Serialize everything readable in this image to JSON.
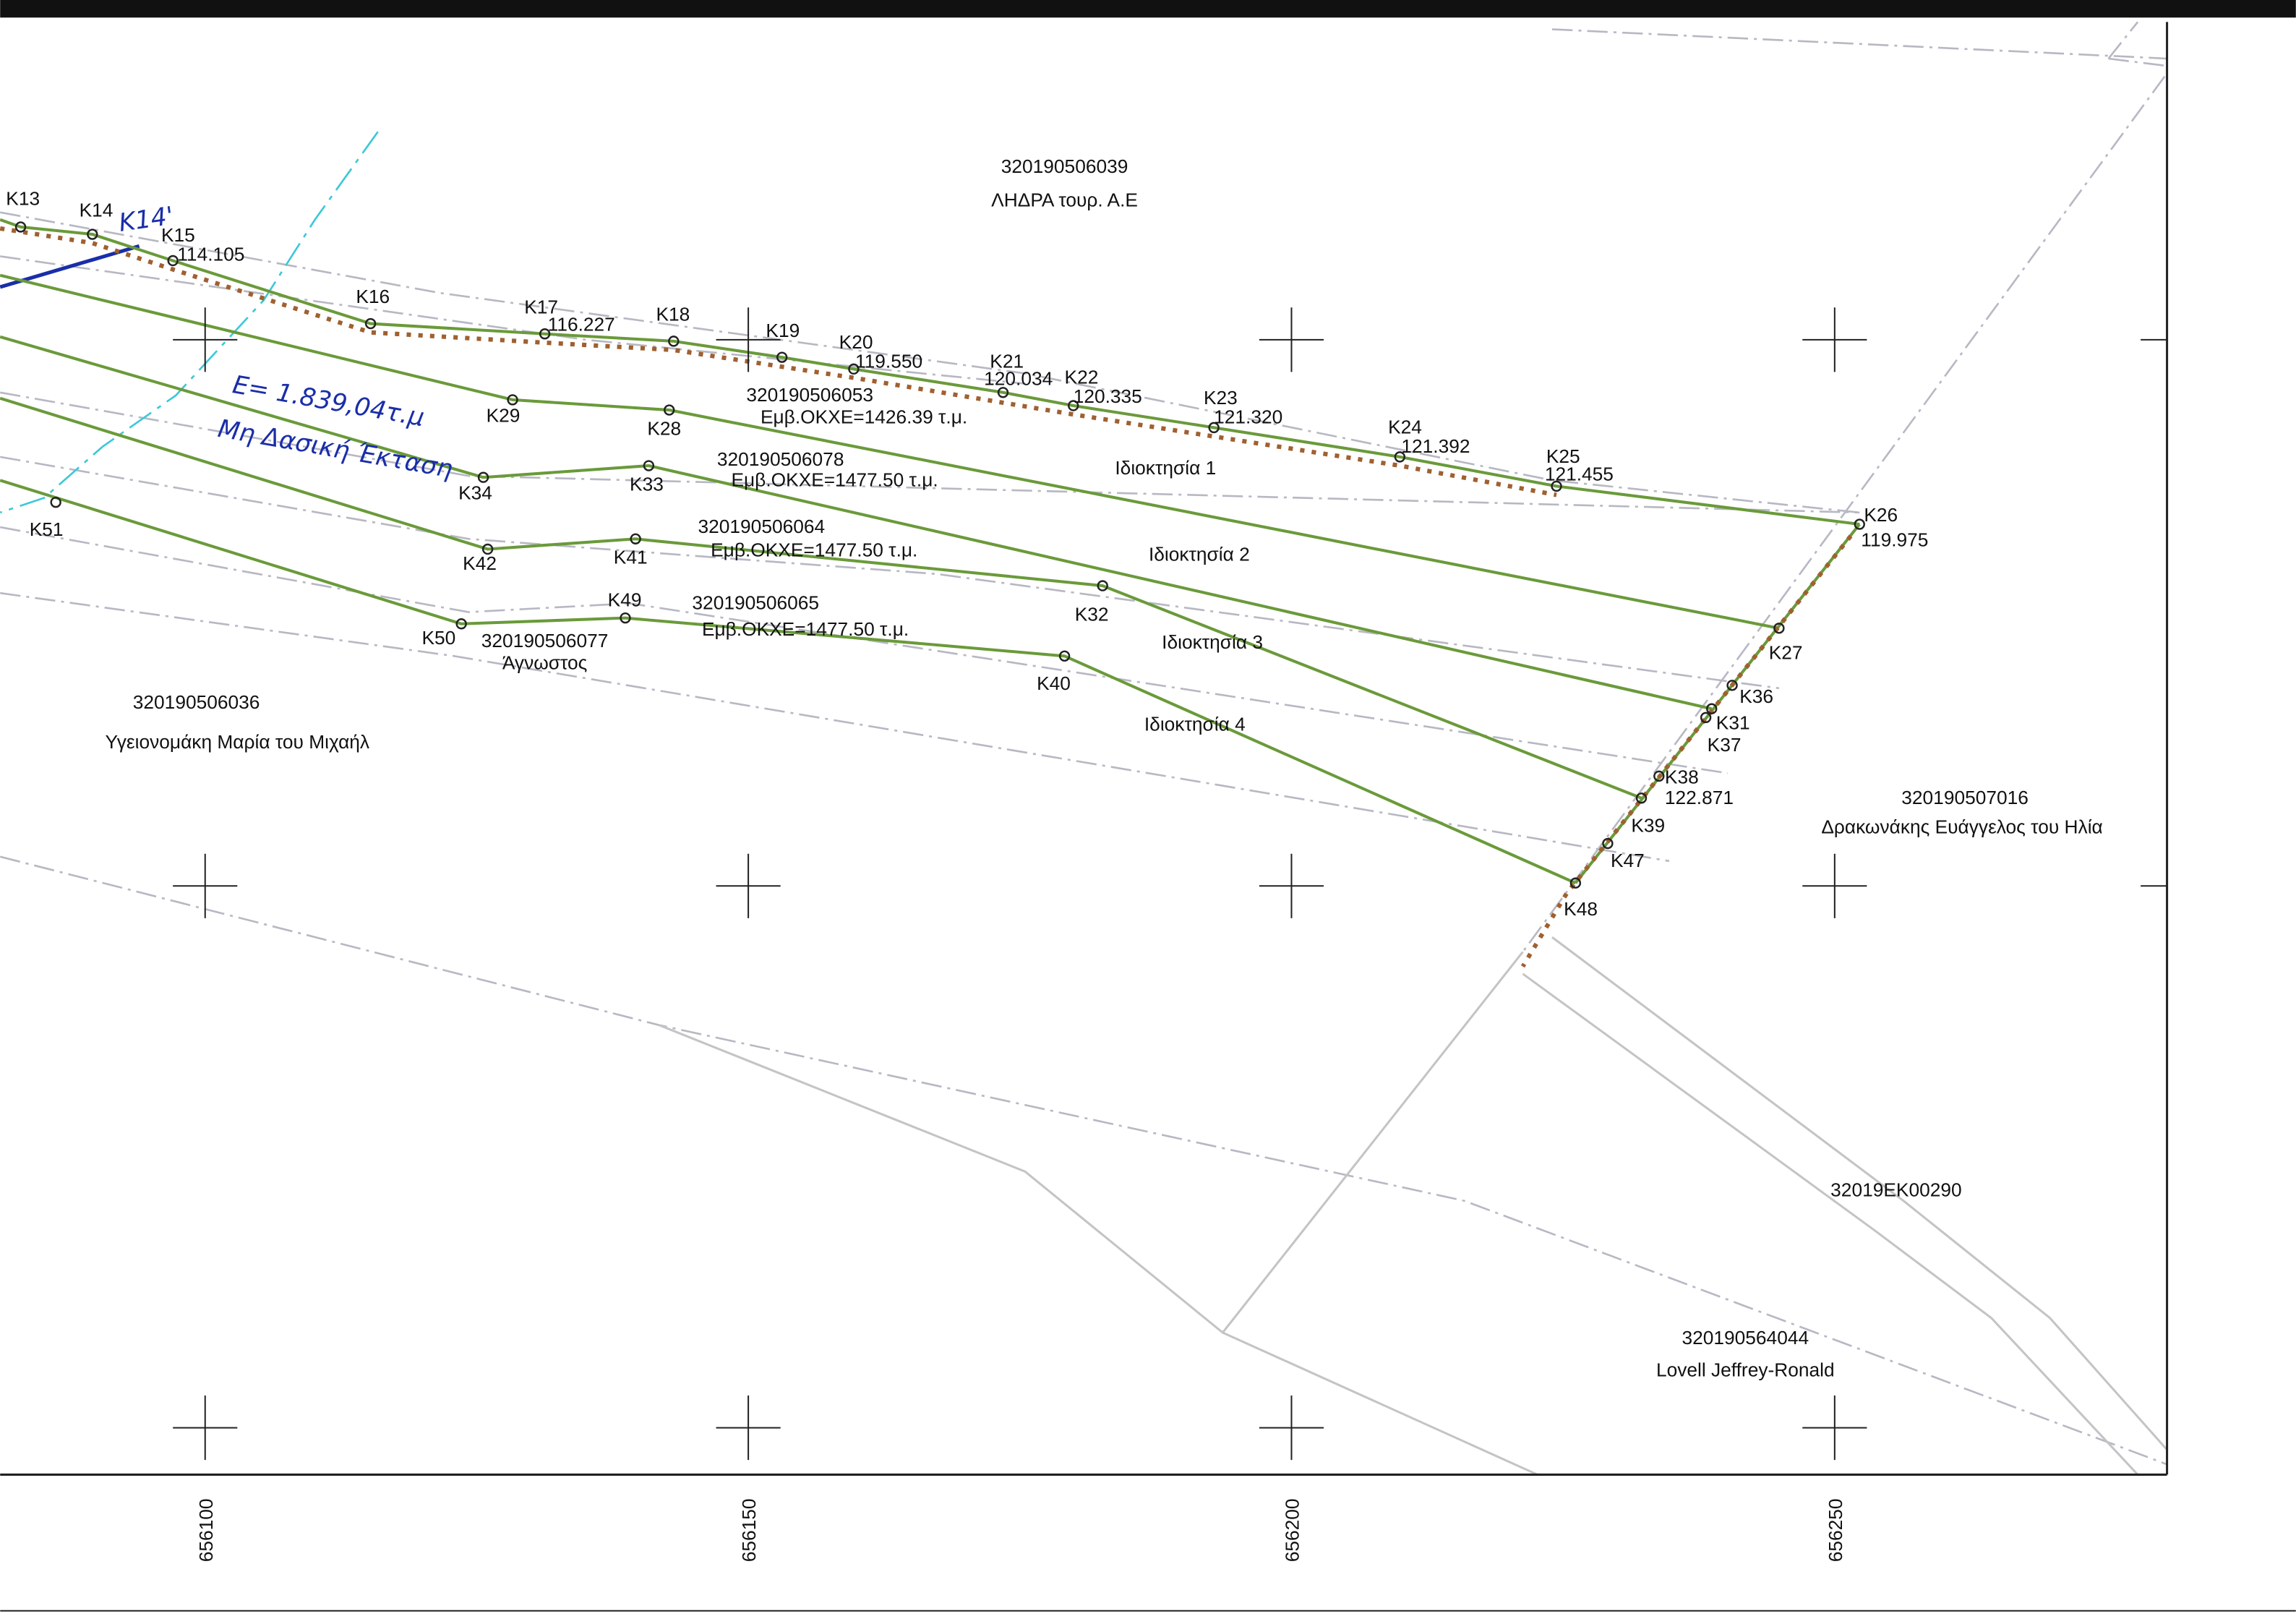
{
  "points": [
    {
      "label": "K13"
    },
    {
      "label": "K14"
    },
    {
      "label": "K15",
      "elevation": "114.105"
    },
    {
      "label": "K16"
    },
    {
      "label": "K17",
      "elevation": "116.227"
    },
    {
      "label": "K18"
    },
    {
      "label": "K19"
    },
    {
      "label": "K20",
      "elevation": "119.550"
    },
    {
      "label": "K21",
      "elevation": "120.034"
    },
    {
      "label": "K22",
      "elevation": "120.335"
    },
    {
      "label": "K23",
      "elevation": "121.320"
    },
    {
      "label": "K24",
      "elevation": "121.392"
    },
    {
      "label": "K25",
      "elevation": "121.455"
    },
    {
      "label": "K26",
      "elevation": "119.975"
    },
    {
      "label": "K27"
    },
    {
      "label": "K36"
    },
    {
      "label": "K31"
    },
    {
      "label": "K37"
    },
    {
      "label": "K38",
      "elevation": "122.871"
    },
    {
      "label": "K39"
    },
    {
      "label": "K47"
    },
    {
      "label": "K48"
    },
    {
      "label": "K29"
    },
    {
      "label": "K28"
    },
    {
      "label": "K34"
    },
    {
      "label": "K33"
    },
    {
      "label": "K42"
    },
    {
      "label": "K41"
    },
    {
      "label": "K50"
    },
    {
      "label": "K49"
    },
    {
      "label": "K32"
    },
    {
      "label": "K40"
    },
    {
      "label": "K51"
    }
  ],
  "parcels": [
    {
      "id": "320190506039",
      "owner": "ΛΗΔΡΑ τουρ. Α.Ε"
    },
    {
      "id": "320190506053",
      "area": "Εμβ.ΟΚΧΕ=1426.39 τ.μ."
    },
    {
      "id": "320190506078",
      "area": "Εμβ.ΟΚΧΕ=1477.50 τ.μ."
    },
    {
      "id": "320190506064",
      "area": "Εμβ.ΟΚΧΕ=1477.50 τ.μ."
    },
    {
      "id": "320190506065",
      "area": "Εμβ.ΟΚΧΕ=1477.50 τ.μ."
    },
    {
      "id": "320190506077",
      "owner": "Άγνωστος"
    },
    {
      "id": "320190506036",
      "owner": "Υγειονομάκη Μαρία του Μιχαήλ"
    },
    {
      "id": "320190507016",
      "owner": "Δρακωνάκης Ευάγγελος του Ηλία"
    },
    {
      "id": "32019ΕΚ00290"
    },
    {
      "id": "320190564044",
      "owner": "Lovell Jeffrey-Ronald"
    }
  ],
  "properties": [
    "Ιδιοκτησία 1",
    "Ιδιοκτησία 2",
    "Ιδιοκτησία 3",
    "Ιδιοκτησία 4"
  ],
  "handwritten": [
    "Κ14'",
    "Ε= 1.839,04τ.μ",
    "Μη Δασική Έκταση"
  ],
  "easting_labels": [
    "656100",
    "656150",
    "656200",
    "656250"
  ]
}
